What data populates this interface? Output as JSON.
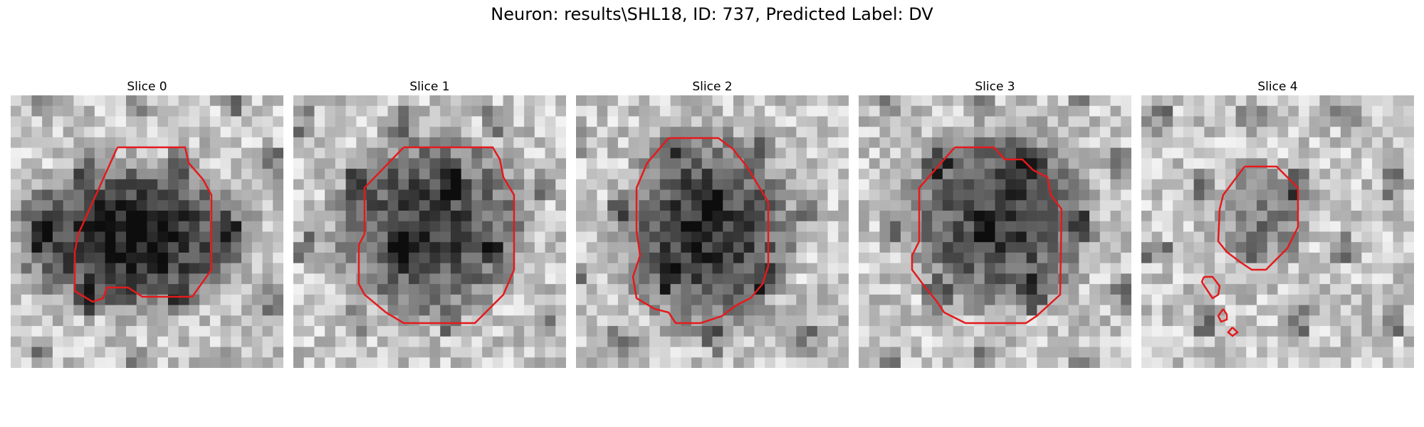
{
  "figure": {
    "title": "Neuron: results\\SHL18, ID: 737, Predicted Label: DV"
  },
  "panels": [
    {
      "title": "Slice 0",
      "center": [
        0.44,
        0.52
      ],
      "radius": [
        0.5,
        0.32
      ],
      "dark": 0.75
    },
    {
      "title": "Slice 1",
      "center": [
        0.5,
        0.48
      ],
      "radius": [
        0.42,
        0.4
      ],
      "dark": 0.6
    },
    {
      "title": "Slice 2",
      "center": [
        0.48,
        0.5
      ],
      "radius": [
        0.38,
        0.42
      ],
      "dark": 0.65
    },
    {
      "title": "Slice 3",
      "center": [
        0.52,
        0.45
      ],
      "radius": [
        0.4,
        0.4
      ],
      "dark": 0.6
    },
    {
      "title": "Slice 4",
      "center": [
        0.45,
        0.44
      ],
      "radius": [
        0.22,
        0.22
      ],
      "dark": 0.35
    }
  ],
  "colors": {
    "contour": "#e41a1c",
    "background": "#ffffff"
  }
}
